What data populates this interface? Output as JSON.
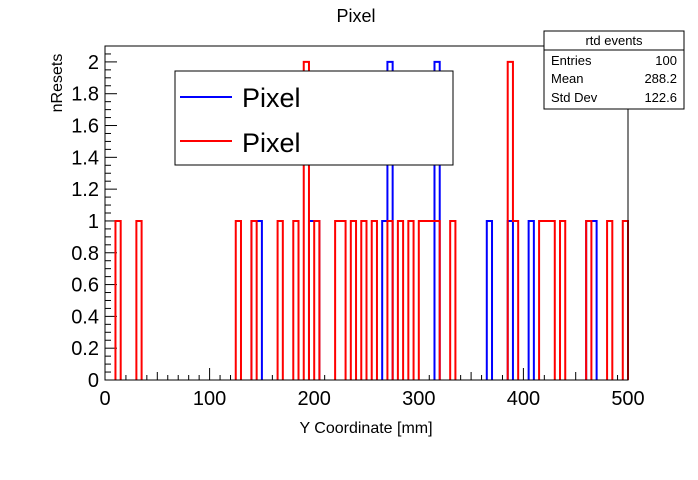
{
  "chart_data": {
    "type": "histogram",
    "title": "Pixel",
    "xlabel": "Y Coordinate [mm]",
    "ylabel": "nResets",
    "xlim": [
      0,
      500
    ],
    "ylim": [
      0,
      2.1
    ],
    "bin_width": 5,
    "x_major_ticks": [
      0,
      100,
      200,
      300,
      400,
      500
    ],
    "y_major_ticks": [
      0,
      0.2,
      0.4,
      0.6,
      0.8,
      1,
      1.2,
      1.4,
      1.6,
      1.8,
      2
    ],
    "x_tick_labels": [
      "0",
      "100",
      "200",
      "300",
      "400",
      "500"
    ],
    "y_tick_labels": [
      "0",
      "0.2",
      "0.4",
      "0.6",
      "0.8",
      "1",
      "1.2",
      "1.4",
      "1.6",
      "1.8",
      "2"
    ],
    "grid": false,
    "legend": {
      "placement": "top-left",
      "entries": [
        {
          "label": "Pixel",
          "color": "#0000ff"
        },
        {
          "label": "Pixel",
          "color": "#ff0000"
        }
      ]
    },
    "stats_box": {
      "title": "rtd events",
      "rows": [
        {
          "label": "Entries",
          "value": "100"
        },
        {
          "label": "Mean",
          "value": "288.2"
        },
        {
          "label": "Std Dev",
          "value": "122.6"
        }
      ]
    },
    "series": [
      {
        "color": "#0000ff",
        "bins": [
          {
            "x": 140,
            "y": 1
          },
          {
            "x": 145,
            "y": 1
          },
          {
            "x": 195,
            "y": 1
          },
          {
            "x": 200,
            "y": 1
          },
          {
            "x": 265,
            "y": 1
          },
          {
            "x": 270,
            "y": 2
          },
          {
            "x": 315,
            "y": 2
          },
          {
            "x": 365,
            "y": 1
          },
          {
            "x": 385,
            "y": 1
          },
          {
            "x": 405,
            "y": 1
          },
          {
            "x": 460,
            "y": 1
          },
          {
            "x": 465,
            "y": 1
          }
        ]
      },
      {
        "color": "#ff0000",
        "bins": [
          {
            "x": 10,
            "y": 1
          },
          {
            "x": 30,
            "y": 1
          },
          {
            "x": 125,
            "y": 1
          },
          {
            "x": 140,
            "y": 1
          },
          {
            "x": 165,
            "y": 1
          },
          {
            "x": 180,
            "y": 1
          },
          {
            "x": 190,
            "y": 2
          },
          {
            "x": 200,
            "y": 1
          },
          {
            "x": 220,
            "y": 1
          },
          {
            "x": 225,
            "y": 1
          },
          {
            "x": 235,
            "y": 1
          },
          {
            "x": 245,
            "y": 1
          },
          {
            "x": 255,
            "y": 1
          },
          {
            "x": 270,
            "y": 1
          },
          {
            "x": 280,
            "y": 1
          },
          {
            "x": 290,
            "y": 1
          },
          {
            "x": 300,
            "y": 1
          },
          {
            "x": 305,
            "y": 1
          },
          {
            "x": 310,
            "y": 1
          },
          {
            "x": 315,
            "y": 1
          },
          {
            "x": 330,
            "y": 1
          },
          {
            "x": 385,
            "y": 2
          },
          {
            "x": 390,
            "y": 1
          },
          {
            "x": 415,
            "y": 1
          },
          {
            "x": 420,
            "y": 1
          },
          {
            "x": 425,
            "y": 1
          },
          {
            "x": 435,
            "y": 1
          },
          {
            "x": 460,
            "y": 1
          },
          {
            "x": 480,
            "y": 1
          },
          {
            "x": 495,
            "y": 1
          }
        ]
      }
    ]
  }
}
